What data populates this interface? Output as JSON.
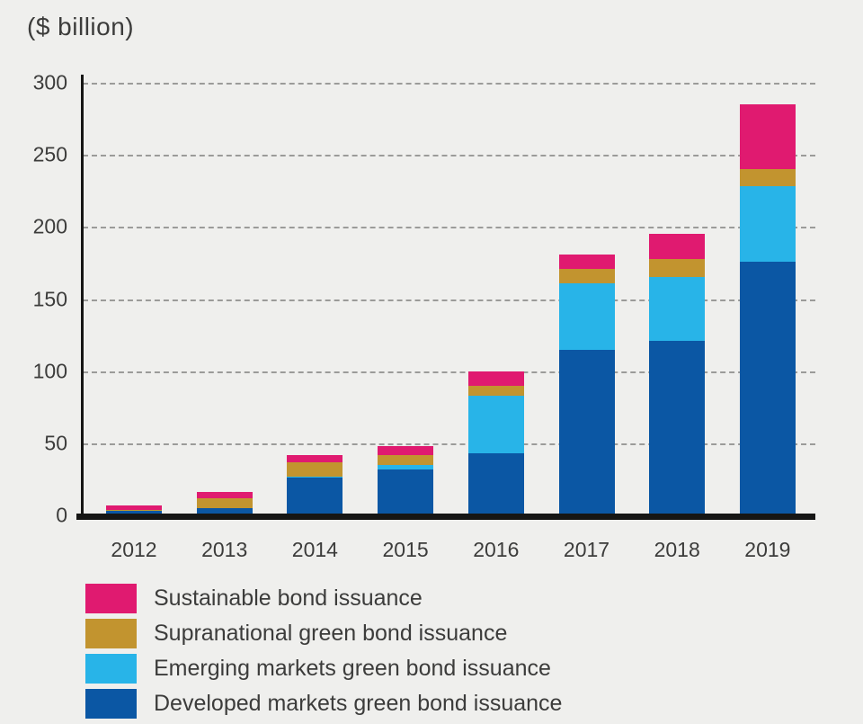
{
  "chart_data": {
    "type": "bar",
    "stacked": true,
    "title": "($ billion)",
    "categories": [
      "2012",
      "2013",
      "2014",
      "2015",
      "2016",
      "2017",
      "2018",
      "2019"
    ],
    "series": [
      {
        "name": "Developed markets green bond issuance",
        "color": "#0b57a4",
        "values": [
          3,
          5,
          26,
          32,
          43,
          115,
          121,
          176
        ]
      },
      {
        "name": "Emerging markets green bond issuance",
        "color": "#28b4e8",
        "values": [
          0,
          0,
          1,
          3,
          40,
          46,
          44,
          52
        ]
      },
      {
        "name": "Supranational green bond issuance",
        "color": "#c2942f",
        "values": [
          1,
          7,
          10,
          7,
          7,
          10,
          13,
          12
        ]
      },
      {
        "name": "Sustainable bond issuance",
        "color": "#e01a70",
        "values": [
          3,
          4,
          5,
          6,
          10,
          10,
          17,
          45
        ]
      }
    ],
    "ylim": [
      0,
      300
    ],
    "yticks": [
      0,
      50,
      100,
      150,
      200,
      250,
      300
    ],
    "ylabel": "",
    "xlabel": "",
    "grid": "horizontal-dashed",
    "legend_position": "bottom-left",
    "legend_order": [
      "Sustainable bond issuance",
      "Supranational green bond issuance",
      "Emerging markets green bond issuance",
      "Developed markets green bond issuance"
    ]
  },
  "colors": {
    "background": "#efefed",
    "axis": "#161615",
    "gridline": "#9b9b99",
    "text": "#3c3c3b"
  }
}
